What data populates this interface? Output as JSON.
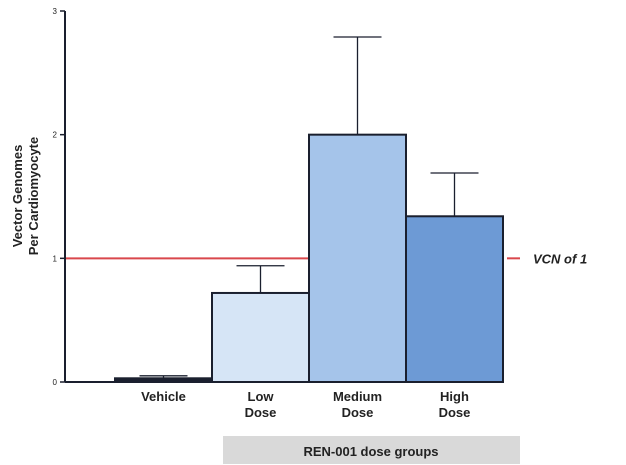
{
  "chart_data": {
    "type": "bar",
    "ylabel_lines": [
      "Vector Genomes",
      "Per Cardiomyocyte"
    ],
    "ylim": [
      0,
      3
    ],
    "yticks": [
      "0",
      "1",
      "2",
      "3"
    ],
    "categories": [
      {
        "lines": [
          "Vehicle"
        ],
        "value": 0.03,
        "error": 0.02,
        "color": "#1a1f2e"
      },
      {
        "lines": [
          "Low",
          "Dose"
        ],
        "value": 0.72,
        "error": 0.22,
        "color": "#d6e5f6"
      },
      {
        "lines": [
          "Medium",
          "Dose"
        ],
        "value": 2.0,
        "error": 0.79,
        "color": "#a5c4ea"
      },
      {
        "lines": [
          "High",
          "Dose"
        ],
        "value": 1.34,
        "error": 0.35,
        "color": "#6d9ad5"
      }
    ],
    "reference_line": {
      "value": 1,
      "label": "VCN of 1",
      "color": "#d9474c"
    },
    "group_label": "REN-001 dose groups",
    "group_label_bg": "#d9d9d9",
    "grid": false
  }
}
